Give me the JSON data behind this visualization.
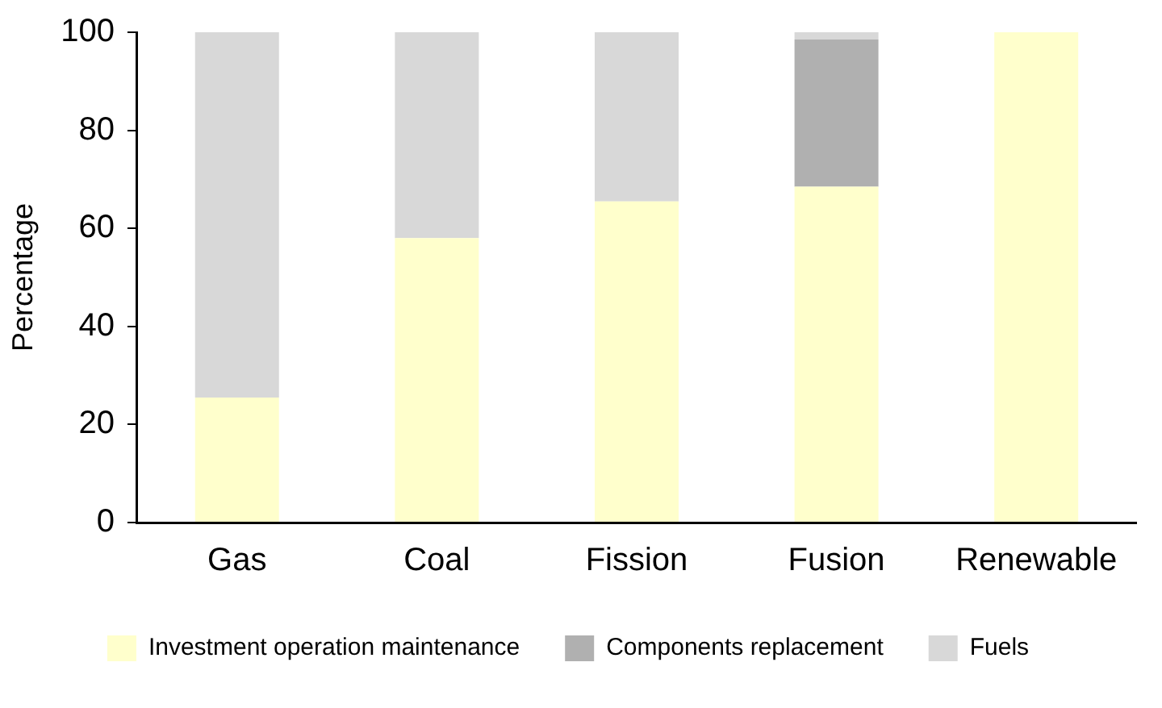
{
  "chart_data": {
    "type": "bar",
    "stacked": true,
    "ylabel": "Percentage",
    "categories": [
      "Gas",
      "Coal",
      "Fission",
      "Fusion",
      "Renewable"
    ],
    "series": [
      {
        "name": "Investment operation maintenance",
        "color": "#ffffcc",
        "values": [
          25.5,
          58,
          65.5,
          68.5,
          100
        ]
      },
      {
        "name": "Components replacement",
        "color": "#b0b0b0",
        "values": [
          0,
          0,
          0,
          30,
          0
        ]
      },
      {
        "name": "Fuels",
        "color": "#d8d8d8",
        "values": [
          74.5,
          42,
          34.5,
          1.5,
          0
        ]
      }
    ],
    "ylim": [
      0,
      100
    ],
    "yticks": [
      0,
      20,
      40,
      60,
      80,
      100
    ],
    "grid": false,
    "legend": "bottom"
  }
}
